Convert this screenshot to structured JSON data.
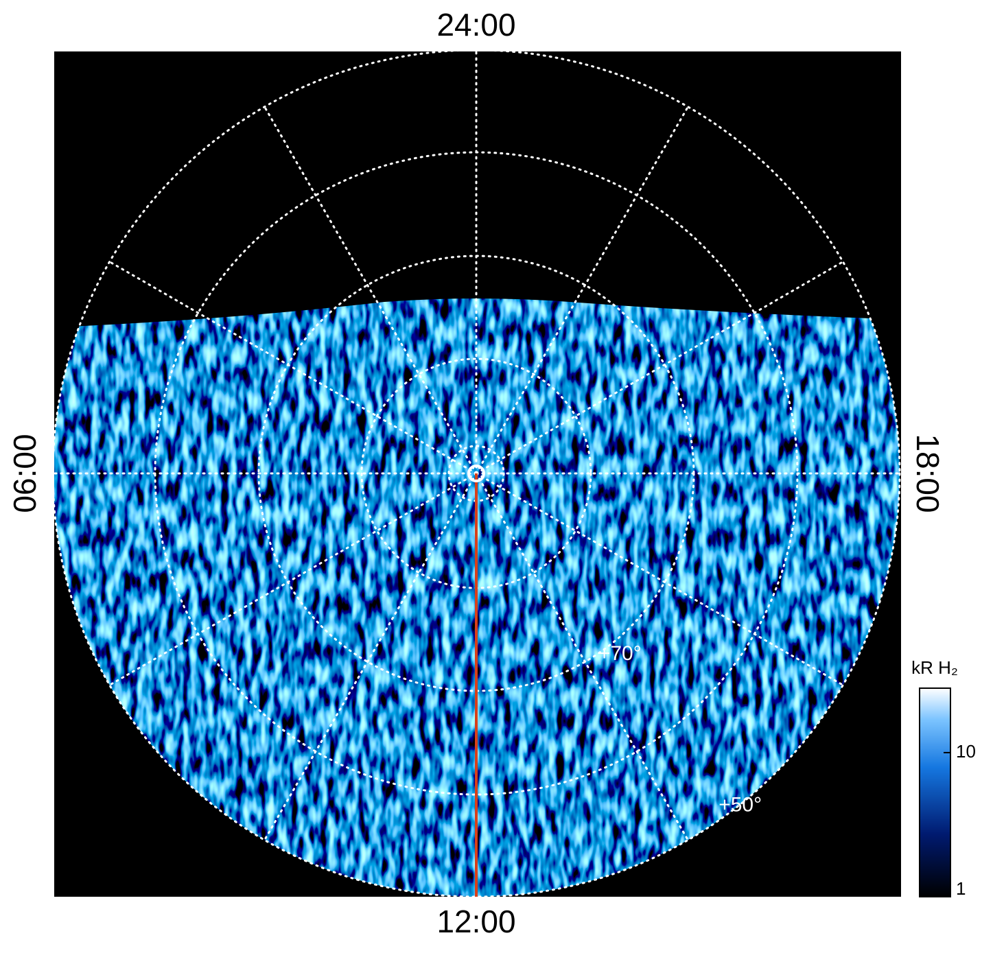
{
  "chart_data": {
    "type": "polar-image",
    "local_time_labels": {
      "top": "24:00",
      "left": "06:00",
      "bottom": "12:00",
      "right": "18:00"
    },
    "latitude_labels": [
      {
        "value": 70,
        "label": "+70°"
      },
      {
        "value": 50,
        "label": "+50°"
      }
    ],
    "colorbar": {
      "title": "kR H₂",
      "scale": "log",
      "lim": [
        1,
        28
      ],
      "ticks": [
        1,
        10
      ]
    }
  }
}
